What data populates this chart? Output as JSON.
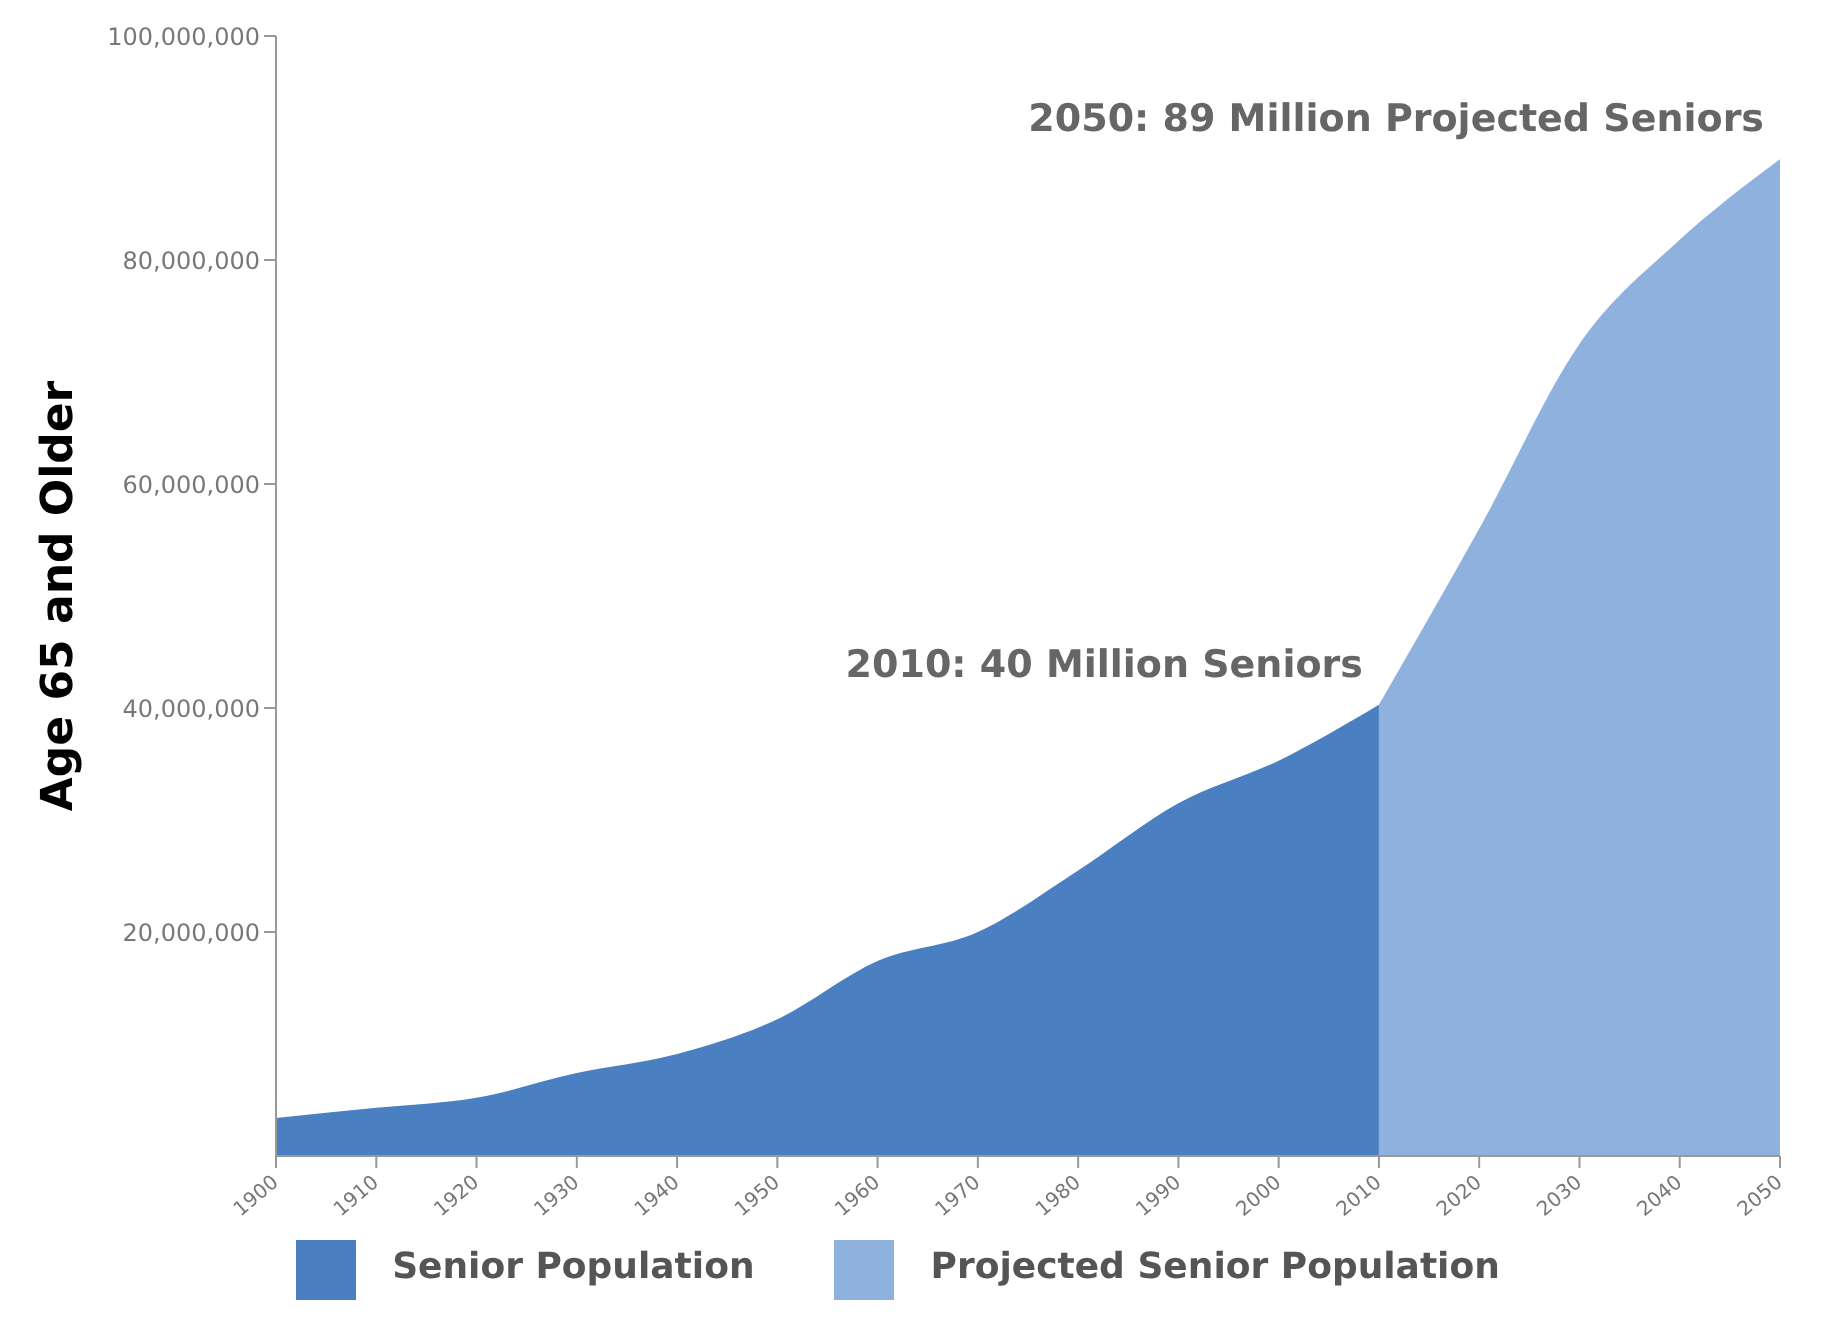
{
  "chart_data": {
    "type": "area",
    "ylabel": "Age 65 and Older",
    "series": [
      {
        "name": "Senior Population",
        "color": "#4a7fc1",
        "x": [
          1900,
          1910,
          1920,
          1930,
          1940,
          1950,
          1960,
          1970,
          1980,
          1990,
          2000,
          2010
        ],
        "values": [
          3400000,
          4300000,
          5200000,
          7400000,
          9100000,
          12200000,
          17400000,
          20000000,
          25500000,
          31500000,
          35300000,
          40300000
        ]
      },
      {
        "name": "Projected Senior Population",
        "color": "#8fb1de",
        "x": [
          2010,
          2020,
          2030,
          2040,
          2050
        ],
        "values": [
          40300000,
          56000000,
          72500000,
          81800000,
          89000000
        ]
      }
    ],
    "xlim": [
      1900,
      2050
    ],
    "xticks": [
      1900,
      1910,
      1920,
      1930,
      1940,
      1950,
      1960,
      1970,
      1980,
      1990,
      2000,
      2010,
      2020,
      2030,
      2040,
      2050
    ],
    "ylim": [
      0,
      100000000
    ],
    "yticks": [
      {
        "value": 20000000,
        "label": "20,000,000"
      },
      {
        "value": 40000000,
        "label": "40,000,000"
      },
      {
        "value": 60000000,
        "label": "60,000,000"
      },
      {
        "value": 80000000,
        "label": "80,000,000"
      },
      {
        "value": 100000000,
        "label": "100,000,000"
      }
    ],
    "annotations": [
      {
        "text": "2010: 40 Million Seniors",
        "x": 2010,
        "y": 40300000
      },
      {
        "text": "2050: 89 Million Projected Seniors",
        "x": 2050,
        "y": 89000000
      }
    ],
    "grid": false,
    "legend": "bottom"
  }
}
